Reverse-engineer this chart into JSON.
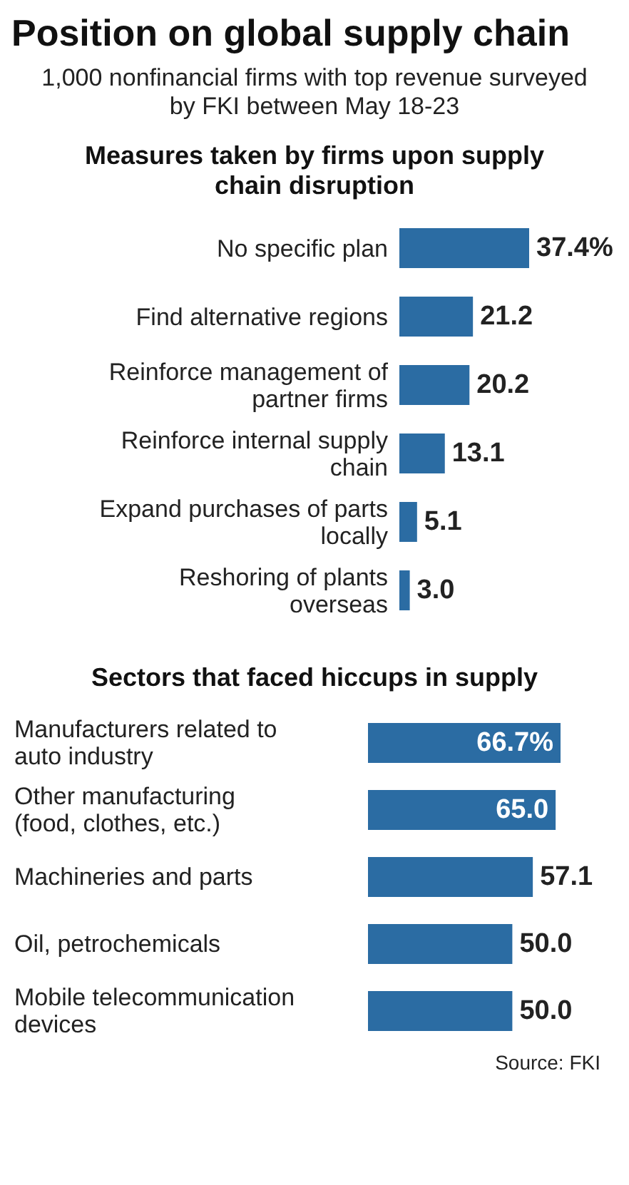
{
  "chart_data": [
    {
      "type": "bar",
      "orientation": "horizontal",
      "title": "Position on global supply chain",
      "subtitle": "1,000 nonfinancial firms with top revenue surveyed by FKI between May 18-23",
      "annotations": [
        "Measures taken by firms upon supply chain disruption"
      ],
      "categories": [
        "No specific plan",
        "Find alternative regions",
        "Reinforce management of partner firms",
        "Reinforce internal supply chain",
        "Expand purchases of parts locally",
        "Reshoring of plants overseas"
      ],
      "values": [
        37.4,
        21.2,
        20.2,
        13.1,
        5.1,
        3.0
      ],
      "color": "#2b6ca3",
      "value_labels": [
        "37.4%",
        "21.2",
        "20.2",
        "13.1",
        "5.1",
        "3.0"
      ],
      "tick_labels": "y",
      "grid": false,
      "legend": false
    },
    {
      "type": "bar",
      "orientation": "horizontal",
      "title": "Sectors that faced hiccups in supply",
      "annotations": [
        "Source: FKI"
      ],
      "categories": [
        "Manufacturers related to auto industry",
        "Other manufacturing (food, clothes, etc.)",
        "Machineries and parts",
        "Oil, petrochemicals",
        "Mobile telecommunication devices"
      ],
      "values": [
        66.7,
        65.0,
        57.1,
        50.0,
        50.0
      ],
      "color": "#2b6ca3",
      "value_labels": [
        "66.7%",
        "65.0",
        "57.1",
        "50.0",
        "50.0"
      ],
      "tick_labels": "y",
      "grid": false,
      "legend": false
    }
  ]
}
